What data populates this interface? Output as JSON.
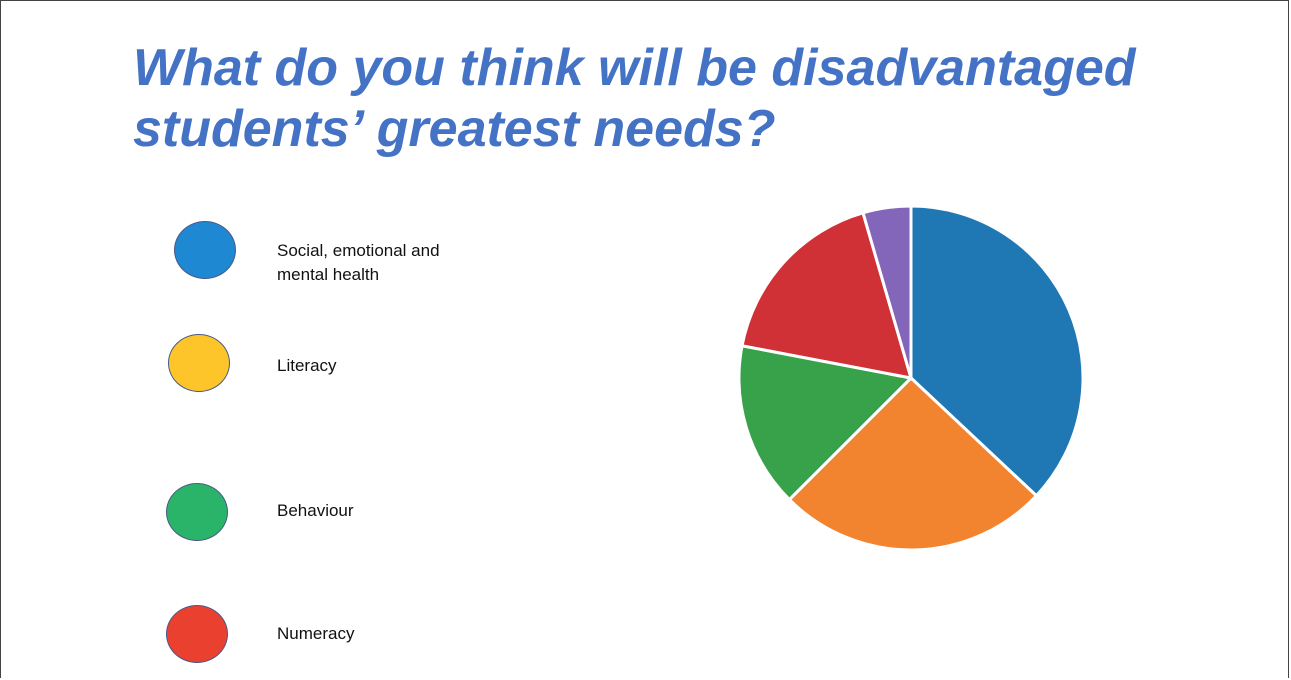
{
  "title": {
    "line1": "What do you think will be disadvantaged",
    "line2": "students’ greatest needs?"
  },
  "legend": [
    {
      "label_lines": [
        "Social, emotional and",
        "mental health"
      ],
      "color": "#1e88d2"
    },
    {
      "label_lines": [
        "Literacy"
      ],
      "color": "#fdc52a"
    },
    {
      "label_lines": [
        "Behaviour"
      ],
      "color": "#2ab46a"
    },
    {
      "label_lines": [
        "Numeracy"
      ],
      "color": "#ea4030"
    }
  ],
  "chart_data": {
    "type": "pie",
    "slices": [
      {
        "value": 37.0,
        "color": "#1f77b4"
      },
      {
        "value": 25.5,
        "color": "#f2832f"
      },
      {
        "value": 15.5,
        "color": "#38a24a"
      },
      {
        "value": 17.5,
        "color": "#d03136"
      },
      {
        "value": 4.5,
        "color": "#8366ba"
      }
    ],
    "start": "12 o'clock",
    "direction": "clockwise",
    "legend_position": "left"
  }
}
